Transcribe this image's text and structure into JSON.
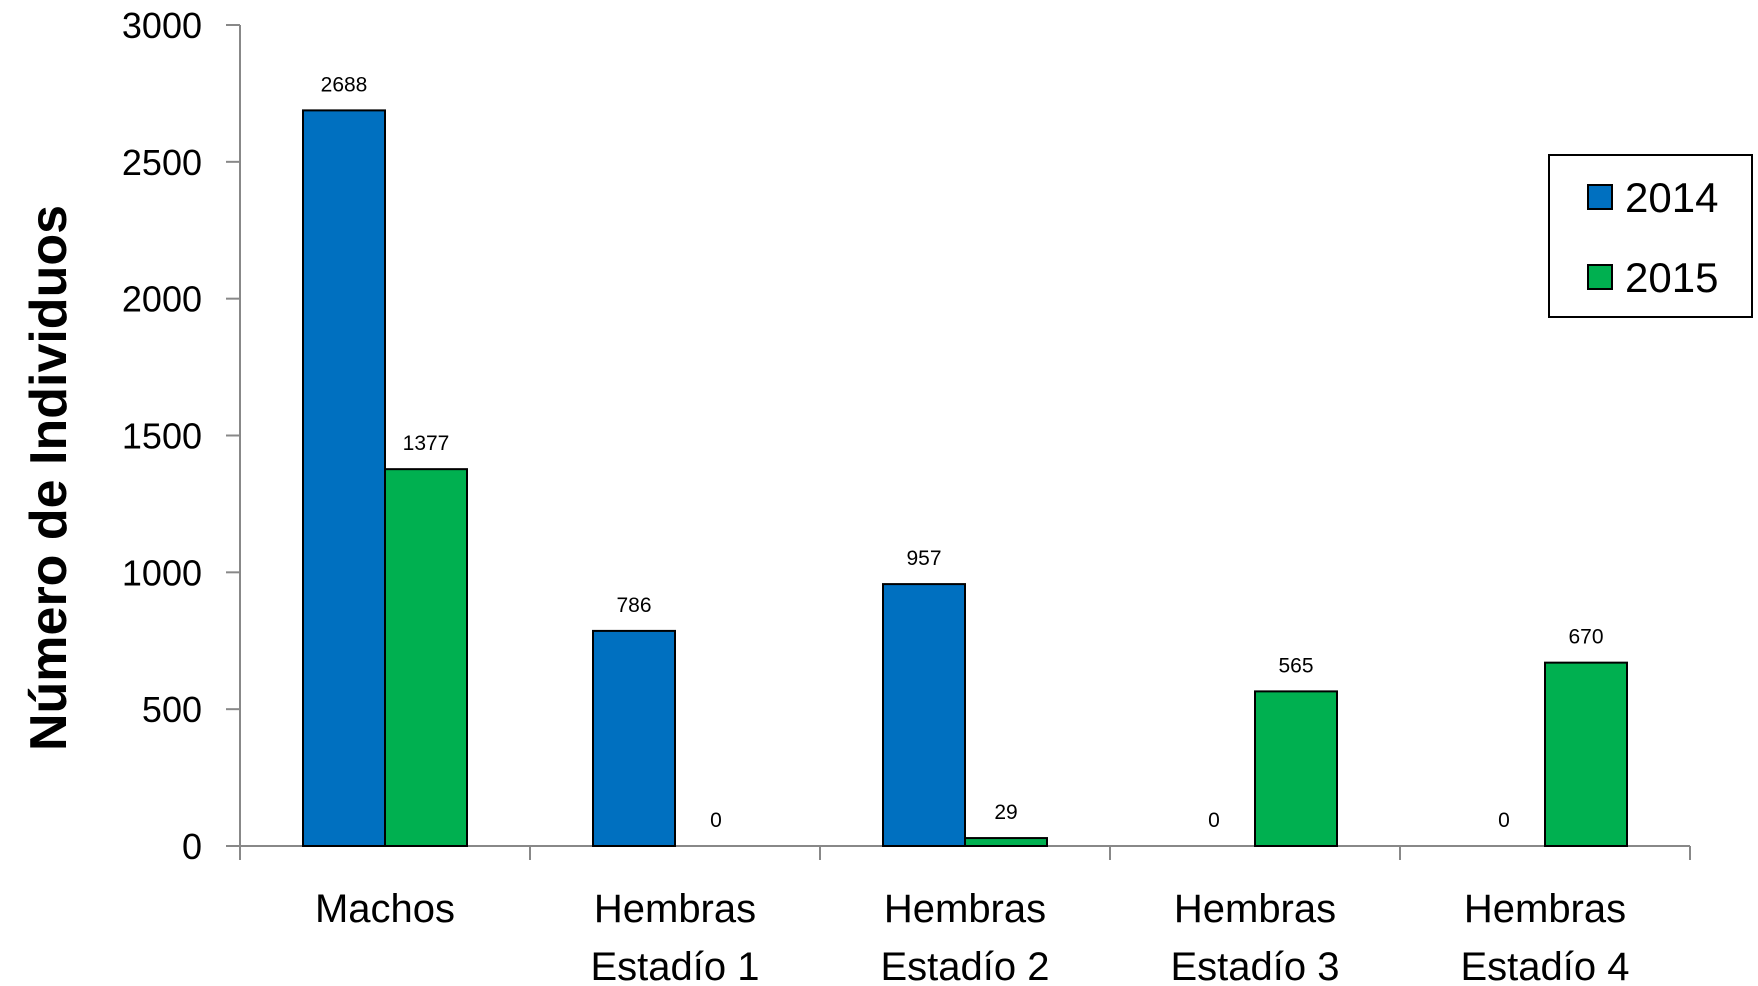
{
  "chart_data": {
    "type": "bar",
    "title": "",
    "xlabel": "",
    "ylabel": "Número de Individuos",
    "ylim": [
      0,
      3000
    ],
    "yticks": [
      0,
      500,
      1000,
      1500,
      2000,
      2500,
      3000
    ],
    "categories": [
      [
        "Machos"
      ],
      [
        "Hembras",
        "Estadío 1"
      ],
      [
        "Hembras",
        "Estadío 2"
      ],
      [
        "Hembras",
        "Estadío 3"
      ],
      [
        "Hembras",
        "Estadío 4"
      ]
    ],
    "series": [
      {
        "name": "2014",
        "color": "#0070C0",
        "values": [
          2688,
          786,
          957,
          0,
          0
        ]
      },
      {
        "name": "2015",
        "color": "#00B050",
        "values": [
          1377,
          0,
          29,
          565,
          670
        ]
      }
    ],
    "grid": false,
    "legend_position": "top-right",
    "data_labels": true
  }
}
